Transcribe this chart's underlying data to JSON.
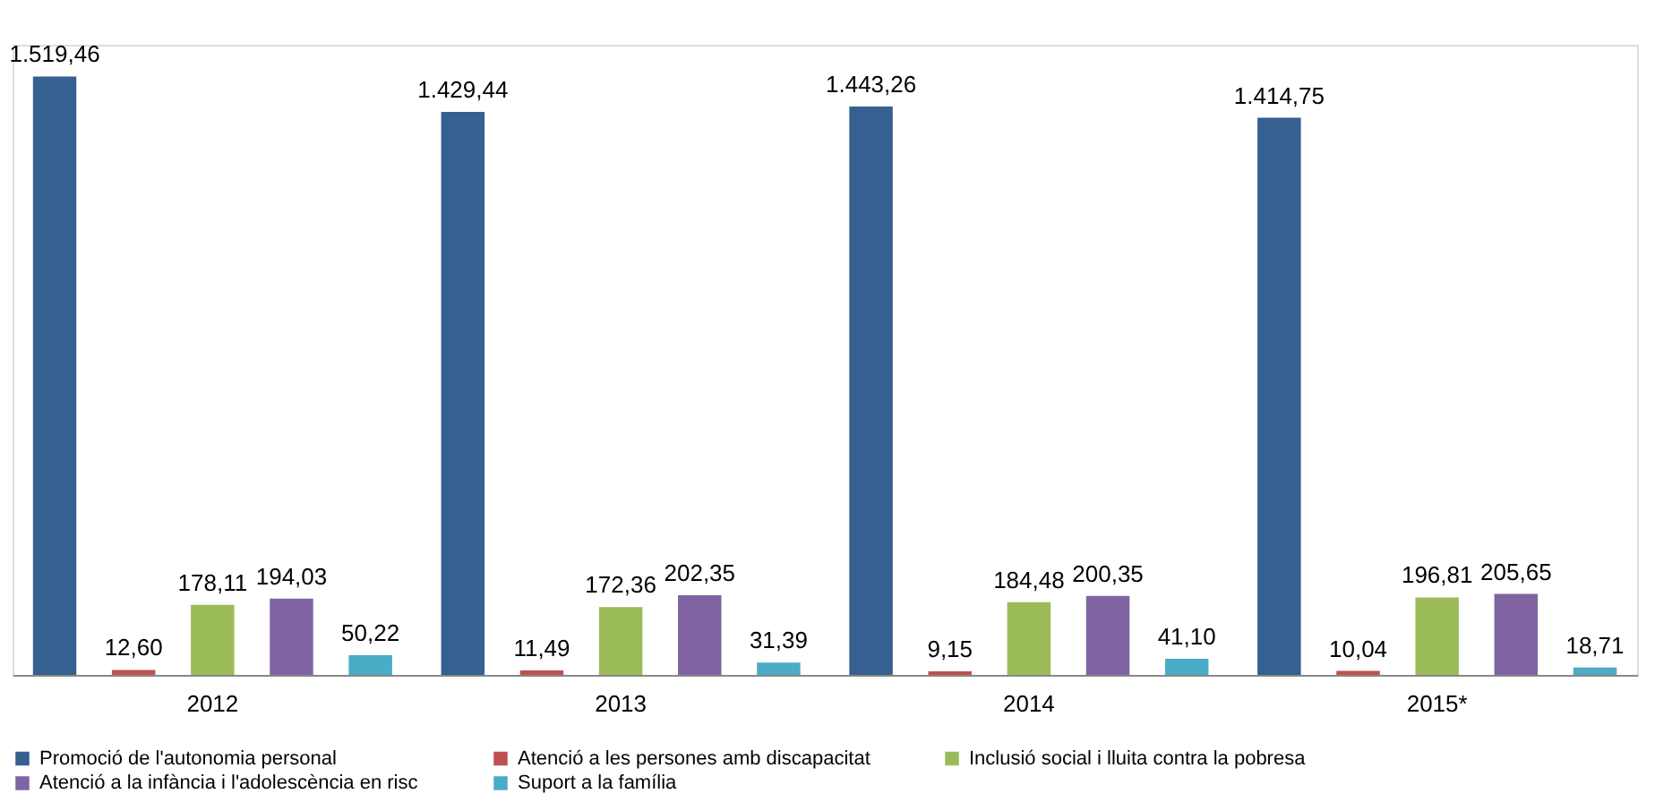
{
  "chart_data": {
    "type": "bar",
    "categories": [
      "2012",
      "2013",
      "2014",
      "2015*"
    ],
    "ylim": [
      0,
      1600
    ],
    "tick_labels": "x",
    "grid": false,
    "legend": "bottom",
    "series": [
      {
        "name": "Promoció de l'autonomia personal",
        "color": "#35608f",
        "values": [
          1519.46,
          1429.44,
          1443.26,
          1414.75
        ],
        "value_labels": [
          "1.519,46",
          "1.429,44",
          "1.443,26",
          "1.414,75"
        ]
      },
      {
        "name": "Atenció a les persones amb discapacitat",
        "color": "#c0504d",
        "values": [
          12.6,
          11.49,
          9.15,
          10.04
        ],
        "value_labels": [
          "12,60",
          "11,49",
          "9,15",
          "10,04"
        ]
      },
      {
        "name": "Inclusió social i lluita contra la pobresa",
        "color": "#9bbb59",
        "values": [
          178.11,
          172.36,
          184.48,
          196.81
        ],
        "value_labels": [
          "178,11",
          "172,36",
          "184,48",
          "196,81"
        ]
      },
      {
        "name": "Atenció a la infància i l'adolescència en risc",
        "color": "#8064a2",
        "values": [
          194.03,
          202.35,
          200.35,
          205.65
        ],
        "value_labels": [
          "194,03",
          "202,35",
          "200,35",
          "205,65"
        ]
      },
      {
        "name": "Suport a la família",
        "color": "#4bacc6",
        "values": [
          50.22,
          31.39,
          41.1,
          18.71
        ],
        "value_labels": [
          "50,22",
          "31,39",
          "41,10",
          "18,71"
        ]
      }
    ]
  }
}
